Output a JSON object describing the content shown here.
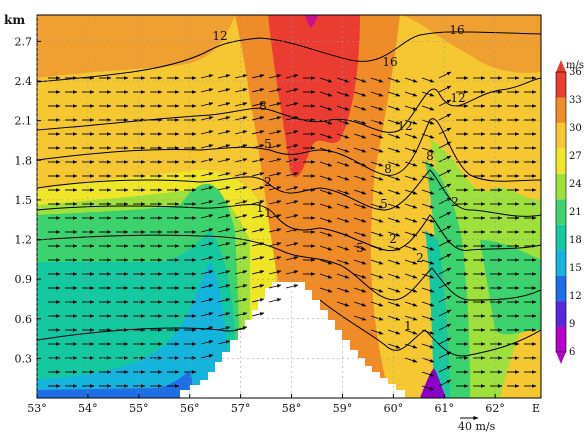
{
  "chart_data": {
    "type": "heatmap",
    "subtype": "vertical cross-section: filled wind-speed contours, isoline contours and wind vectors",
    "y_unit_label": "km",
    "y_ticks": [
      "0.3",
      "0.6",
      "0.9",
      "1.2",
      "1.5",
      "1.8",
      "2.1",
      "2.4",
      "2.7"
    ],
    "ylim": [
      0,
      2.9
    ],
    "x_ticks": [
      "53°",
      "54°",
      "55°",
      "56°",
      "57°",
      "58°",
      "59°",
      "60°",
      "61°",
      "62°",
      "E"
    ],
    "xlim": [
      53,
      62.9
    ],
    "colorbar": {
      "unit_label": "m/s",
      "ticks": [
        "6",
        "9",
        "12",
        "15",
        "18",
        "21",
        "24",
        "27",
        "30",
        "33",
        "36"
      ],
      "colors": [
        "#b400c8",
        "#5a28dc",
        "#1e6ee6",
        "#14b4dc",
        "#14c8a0",
        "#3cd26e",
        "#9ee13c",
        "#f0e628",
        "#f5c832",
        "#f08c28",
        "#eb3c32"
      ]
    },
    "isoline_labels": [
      "12",
      "16",
      "16",
      "12",
      "8",
      "12",
      "5",
      "8",
      "2",
      "5",
      "1",
      "2",
      "5",
      "2",
      "1",
      "2",
      "1",
      "8"
    ],
    "vector_key": {
      "label": "40 m/s",
      "speed": 40
    },
    "terrain_peak_km": 0.9,
    "terrain_peak_lon": 58.1,
    "grid": true
  }
}
